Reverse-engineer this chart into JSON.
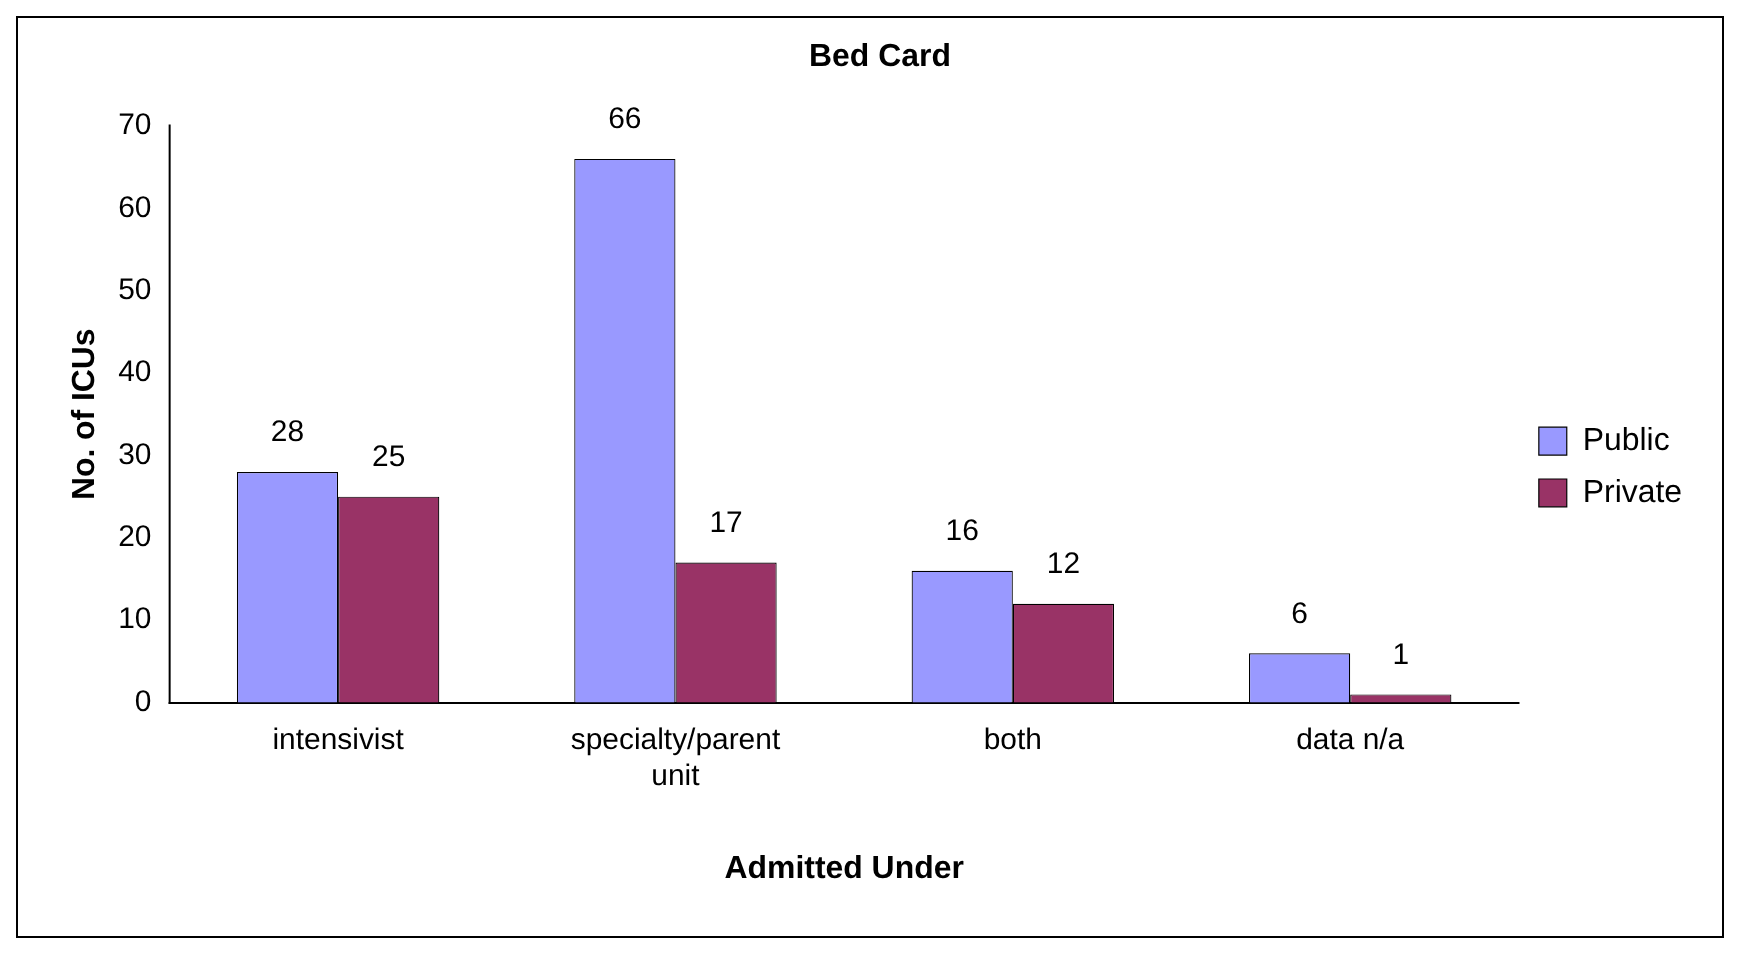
{
  "chart_data": {
    "type": "bar",
    "title": "Bed Card",
    "xlabel": "Admitted Under",
    "ylabel": "No. of ICUs",
    "categories": [
      "intensivist",
      "specialty/parent unit",
      "both",
      "data n/a"
    ],
    "series": [
      {
        "name": "Public",
        "color": "#9999ff",
        "values": [
          28,
          66,
          16,
          6
        ]
      },
      {
        "name": "Private",
        "color": "#993366",
        "values": [
          25,
          17,
          12,
          1
        ]
      }
    ],
    "ylim": [
      0,
      70
    ],
    "yticks": [
      0,
      10,
      20,
      30,
      40,
      50,
      60,
      70
    ],
    "grid": false,
    "legend": "right",
    "data_labels": true
  }
}
